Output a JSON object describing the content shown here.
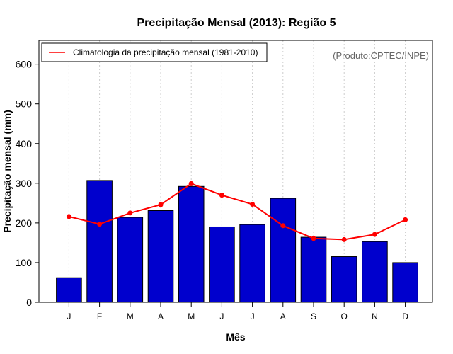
{
  "chart_data": {
    "type": "bar",
    "title": "Precipitação Mensal (2013): Região 5",
    "xlabel": "Mês",
    "ylabel": "Precipitação mensal (mm)",
    "ylim": [
      0,
      660
    ],
    "yticks": [
      0,
      100,
      200,
      300,
      400,
      500,
      600
    ],
    "grid": true,
    "categories": [
      "J",
      "F",
      "M",
      "A",
      "M",
      "J",
      "J",
      "A",
      "S",
      "O",
      "N",
      "D"
    ],
    "series": [
      {
        "name": "Precipitação mensal (2013)",
        "type": "bar",
        "color": "#0000cd",
        "values": [
          62,
          307,
          214,
          231,
          292,
          190,
          196,
          262,
          164,
          115,
          153,
          100
        ]
      },
      {
        "name": "Climatologia da precipitação mensal (1981-2010)",
        "type": "line",
        "color": "#ff0000",
        "values": [
          216,
          197,
          225,
          246,
          299,
          270,
          247,
          193,
          161,
          158,
          171,
          208
        ]
      }
    ],
    "legend": {
      "position": "top-left",
      "entry": "Climatologia da precipitação mensal (1981-2010)"
    },
    "credit": "(Produto:CPTEC/INPE)"
  }
}
